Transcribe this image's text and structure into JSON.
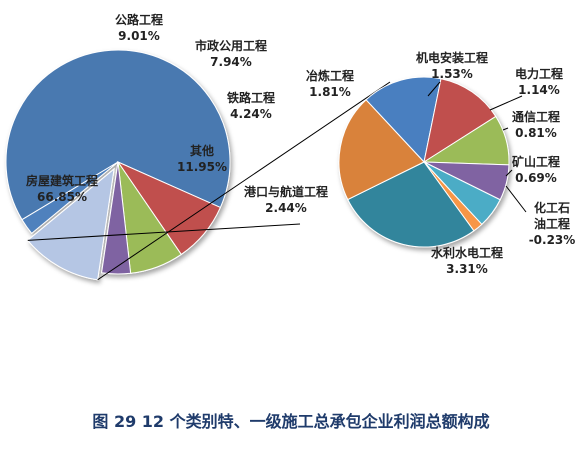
{
  "caption": "图 29 12 个类别特、一级施工总承包企业利润总额构成",
  "chart_data": [
    {
      "type": "pie",
      "categories": [
        "房屋建筑工程",
        "公路工程",
        "市政公用工程",
        "铁路工程",
        "其他",
        "港口与航道工程"
      ],
      "values": [
        66.85,
        9.01,
        7.94,
        4.24,
        11.95,
        2.44
      ],
      "labels": [
        "66.85%",
        "9.01%",
        "7.94%",
        "4.24%",
        "11.95%",
        "2.44%"
      ],
      "colors": [
        "#4a79b0",
        "#c0504d",
        "#9bbb59",
        "#7f64a2",
        "#b5c6e4",
        "#4f81bd"
      ],
      "exploded_slice": "其他"
    },
    {
      "type": "pie",
      "categories": [
        "冶炼工程",
        "机电安装工程",
        "电力工程",
        "通信工程",
        "矿山工程",
        "化工石油工程",
        "水利水电工程"
      ],
      "values": [
        1.81,
        1.53,
        1.14,
        0.81,
        0.69,
        -0.23,
        3.31
      ],
      "labels": [
        "1.81%",
        "1.53%",
        "1.14%",
        "0.81%",
        "0.69%",
        "-0.23%",
        "3.31%"
      ],
      "label_lines": [
        [
          "冶炼工程"
        ],
        [
          "机电安装工程"
        ],
        [
          "电力工程"
        ],
        [
          "通信工程"
        ],
        [
          "矿山工程"
        ],
        [
          "化工石",
          "油工程"
        ],
        [
          "水利水电工程"
        ]
      ],
      "colors": [
        "#4a7fc0",
        "#c0504d",
        "#9bbb59",
        "#8064a2",
        "#4bacc6",
        "#f79646",
        "#31859c",
        "#d9823b"
      ],
      "plotted_values": [
        1.81,
        1.53,
        1.14,
        0.81,
        0.69,
        0.23,
        3.31,
        2.43
      ]
    }
  ]
}
